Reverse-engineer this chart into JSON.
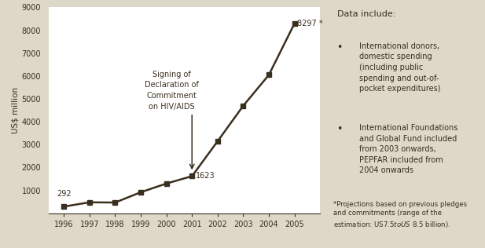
{
  "years": [
    1996,
    1997,
    1998,
    1999,
    2000,
    2001,
    2002,
    2003,
    2004,
    2005
  ],
  "values": [
    292,
    480,
    470,
    920,
    1300,
    1623,
    3150,
    4700,
    6050,
    8297
  ],
  "ylabel": "US$ million",
  "ylim": [
    0,
    9000
  ],
  "yticks": [
    1000,
    2000,
    3000,
    4000,
    5000,
    6000,
    7000,
    8000,
    9000
  ],
  "line_color": "#3a2e1e",
  "bg_color": "#e8e2d6",
  "plot_bg": "#ffffff",
  "annotation_text": "Signing of\nDeclaration of\nCommitment\non HIV/AIDS",
  "side_panel_bg": "#ddd8c8",
  "side_title": "Data include:",
  "bullet1": "International donors,\ndomestic spending\n(including public\nspending and out-of-\npocket expenditures)",
  "bullet2": "International Foundations\nand Global Fund included\nfrom 2003 onwards,\nPEPFAR included from\n2004 onwards",
  "footnote": "*Projections based on previous pledges\nand commitments (range of the\nestimation: US$ 7.5 to US$ 8.5 billion).",
  "font_color": "#3a2e1e"
}
